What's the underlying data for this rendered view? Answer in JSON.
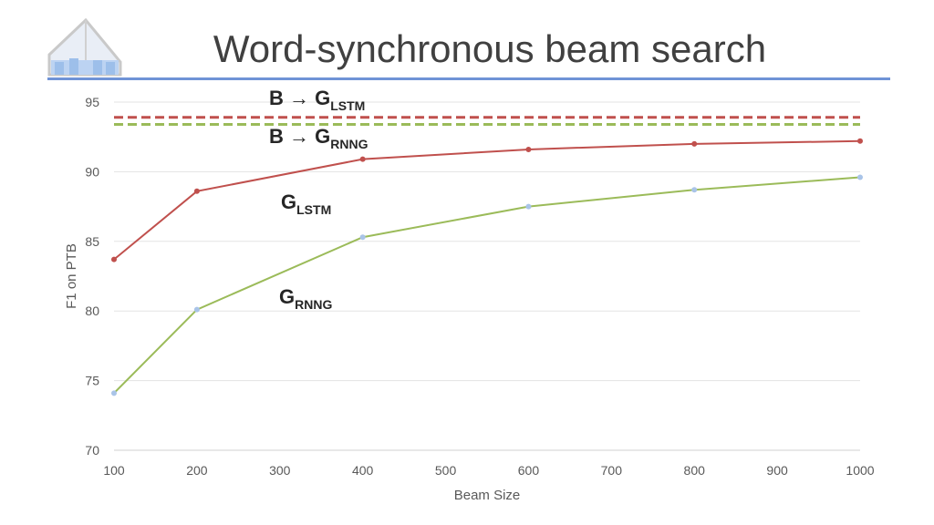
{
  "slide": {
    "title": "Word-synchronous beam search"
  },
  "chart_data": {
    "type": "line",
    "title": "",
    "xlabel": "Beam Size",
    "ylabel": "F1 on PTB",
    "x": [
      100,
      200,
      400,
      600,
      800,
      1000
    ],
    "xlim": [
      100,
      1000
    ],
    "ylim": [
      70,
      95
    ],
    "xticks": [
      100,
      200,
      300,
      400,
      500,
      600,
      700,
      800,
      900,
      1000
    ],
    "yticks": [
      70,
      75,
      80,
      85,
      90,
      95
    ],
    "grid": "horizontal",
    "legend": "none",
    "series": [
      {
        "label_main": "G",
        "label_sub": "LSTM",
        "color": "#c0504d",
        "marker_color": "#c0504d",
        "values": [
          83.7,
          88.6,
          90.9,
          91.6,
          92.0,
          92.2
        ]
      },
      {
        "label_main": "G",
        "label_sub": "RNNG",
        "color": "#9bbb59",
        "marker_color": "#a9c4e8",
        "values": [
          74.1,
          80.1,
          85.3,
          87.5,
          88.7,
          89.6
        ]
      }
    ],
    "reference_lines": [
      {
        "label_main": "B → G",
        "label_sub": "LSTM",
        "value": 93.9,
        "color": "#c0504d",
        "style": "dashed"
      },
      {
        "label_main": "B → G",
        "label_sub": "RNNG",
        "value": 93.4,
        "color": "#9bbb59",
        "style": "dashed"
      }
    ]
  }
}
